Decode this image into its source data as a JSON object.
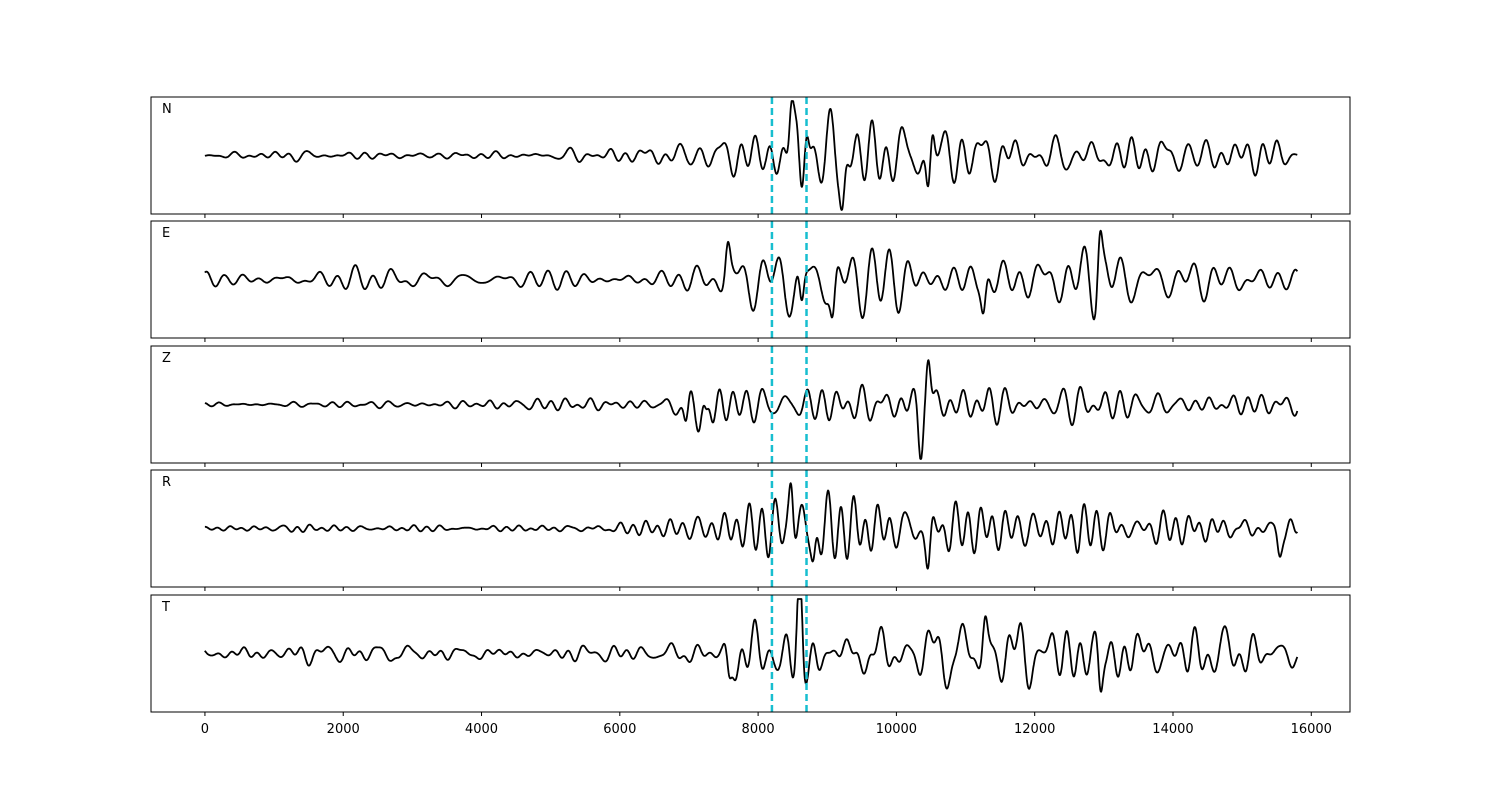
{
  "chart_data": {
    "type": "line",
    "title": "",
    "xlabel": "",
    "ylabel": "",
    "xlim": [
      -780,
      16560
    ],
    "ylim": [
      -1,
      1
    ],
    "grid": false,
    "legend": "none",
    "n_samples": 15800,
    "line_color": "#000000",
    "marker_color": "#17becf",
    "marker_lines": [
      8200,
      8700
    ],
    "x_ticks": [
      0,
      2000,
      4000,
      6000,
      8000,
      10000,
      12000,
      14000,
      16000
    ],
    "x_tick_labels": [
      "0",
      "2000",
      "4000",
      "6000",
      "8000",
      "10000",
      "12000",
      "14000",
      "16000"
    ],
    "panels": [
      {
        "label": "N",
        "envelope": [
          [
            0,
            0.04
          ],
          [
            500,
            0.05
          ],
          [
            1300,
            0.13
          ],
          [
            1600,
            0.06
          ],
          [
            3000,
            0.05
          ],
          [
            4200,
            0.06
          ],
          [
            5000,
            0.1
          ],
          [
            6000,
            0.15
          ],
          [
            6800,
            0.25
          ],
          [
            7500,
            0.3
          ],
          [
            8100,
            0.35
          ],
          [
            8480,
            0.95
          ],
          [
            8700,
            0.7
          ],
          [
            9200,
            0.6
          ],
          [
            10000,
            0.55
          ],
          [
            10500,
            0.72
          ],
          [
            11000,
            0.5
          ],
          [
            12000,
            0.35
          ],
          [
            13500,
            0.33
          ],
          [
            14500,
            0.28
          ],
          [
            15500,
            0.3
          ],
          [
            15800,
            0.2
          ]
        ],
        "spikes": [
          [
            8480,
            0.9
          ],
          [
            8620,
            -0.55
          ],
          [
            8700,
            0.75
          ],
          [
            9220,
            -0.72
          ],
          [
            10460,
            -0.72
          ],
          [
            10520,
            0.55
          ]
        ]
      },
      {
        "label": "E",
        "envelope": [
          [
            0,
            0.25
          ],
          [
            300,
            0.12
          ],
          [
            1500,
            0.14
          ],
          [
            3000,
            0.18
          ],
          [
            4500,
            0.17
          ],
          [
            5500,
            0.18
          ],
          [
            6600,
            0.16
          ],
          [
            7300,
            0.22
          ],
          [
            7600,
            0.45
          ],
          [
            8200,
            0.55
          ],
          [
            8600,
            0.75
          ],
          [
            9000,
            0.55
          ],
          [
            10000,
            0.58
          ],
          [
            11000,
            0.5
          ],
          [
            12000,
            0.5
          ],
          [
            12900,
            0.55
          ],
          [
            13500,
            0.38
          ],
          [
            14500,
            0.32
          ],
          [
            15500,
            0.25
          ],
          [
            15800,
            0.2
          ]
        ],
        "spikes": [
          [
            7560,
            0.55
          ],
          [
            8630,
            -0.7
          ],
          [
            9080,
            -0.7
          ],
          [
            12940,
            0.9
          ],
          [
            11260,
            -0.6
          ]
        ]
      },
      {
        "label": "Z",
        "envelope": [
          [
            0,
            0.04
          ],
          [
            2000,
            0.05
          ],
          [
            4000,
            0.05
          ],
          [
            4400,
            0.25
          ],
          [
            5500,
            0.12
          ],
          [
            6600,
            0.1
          ],
          [
            6900,
            0.45
          ],
          [
            7300,
            0.5
          ],
          [
            7800,
            0.3
          ],
          [
            8600,
            0.35
          ],
          [
            9500,
            0.35
          ],
          [
            10000,
            0.5
          ],
          [
            10420,
            0.9
          ],
          [
            10800,
            0.45
          ],
          [
            11500,
            0.25
          ],
          [
            13000,
            0.25
          ],
          [
            15800,
            0.22
          ]
        ],
        "spikes": [
          [
            10460,
            0.85
          ],
          [
            10350,
            -0.75
          ],
          [
            7250,
            -0.55
          ],
          [
            6960,
            -0.45
          ]
        ]
      },
      {
        "label": "R",
        "envelope": [
          [
            0,
            0.05
          ],
          [
            1000,
            0.06
          ],
          [
            1300,
            0.16
          ],
          [
            1600,
            0.06
          ],
          [
            4500,
            0.06
          ],
          [
            5200,
            0.1
          ],
          [
            6500,
            0.15
          ],
          [
            7000,
            0.25
          ],
          [
            7800,
            0.3
          ],
          [
            8400,
            0.55
          ],
          [
            8520,
            0.95
          ],
          [
            8700,
            0.65
          ],
          [
            9200,
            0.55
          ],
          [
            10000,
            0.55
          ],
          [
            10400,
            0.7
          ],
          [
            11000,
            0.45
          ],
          [
            12000,
            0.35
          ],
          [
            15800,
            0.3
          ]
        ],
        "spikes": [
          [
            8480,
            0.95
          ],
          [
            8800,
            -0.65
          ],
          [
            10460,
            -0.72
          ],
          [
            15540,
            -0.45
          ]
        ]
      },
      {
        "label": "T",
        "envelope": [
          [
            0,
            0.2
          ],
          [
            300,
            0.12
          ],
          [
            2000,
            0.16
          ],
          [
            3500,
            0.15
          ],
          [
            5000,
            0.14
          ],
          [
            6500,
            0.12
          ],
          [
            7300,
            0.2
          ],
          [
            7600,
            0.45
          ],
          [
            8100,
            0.45
          ],
          [
            8600,
            0.9
          ],
          [
            9000,
            0.45
          ],
          [
            10000,
            0.5
          ],
          [
            11300,
            0.6
          ],
          [
            12500,
            0.5
          ],
          [
            12950,
            0.8
          ],
          [
            13500,
            0.45
          ],
          [
            14500,
            0.4
          ],
          [
            15800,
            0.22
          ]
        ],
        "spikes": [
          [
            8600,
            0.88
          ],
          [
            7580,
            -0.6
          ],
          [
            12950,
            -0.88
          ],
          [
            11280,
            0.55
          ],
          [
            8660,
            -0.45
          ]
        ]
      }
    ]
  }
}
